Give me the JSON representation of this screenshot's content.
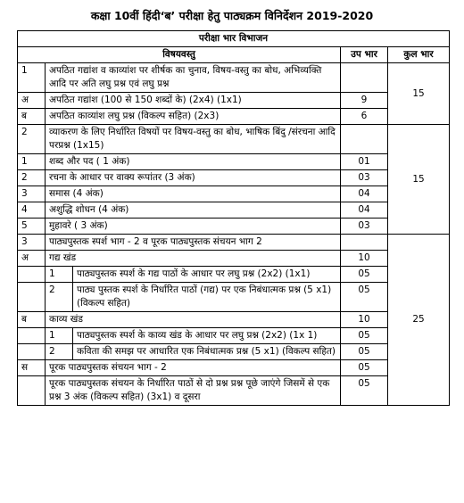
{
  "title": "कक्षा 10वीं हिंदी‘ब’ परीक्षा हेतु पाठ्यक्रम विनिर्देशन 2019-2020",
  "header": {
    "section": "परीक्षा भार विभाजन",
    "topic": "विषयवस्तु",
    "sub_marks": "उप भार",
    "total_marks": "कुल भार"
  },
  "rows": [
    {
      "num": "1",
      "text": "अपठित गद्यांश व काव्यांश पर शीर्षक का चुनाव, विषय-वस्तु का बोध, अभिव्यक्ति आदि पर अति लघु प्रश्न एवं लघु प्रश्न",
      "total": "15",
      "subs": [
        {
          "label": "अ",
          "text": "अपठित गद्यांश (100 से 150 शब्दों के) (2x4) (1x1)",
          "marks": "9"
        },
        {
          "label": "ब",
          "text": "अपठित काव्यांश लघु प्रश्न (विकल्प सहित) (2x3)",
          "marks": "6"
        }
      ]
    },
    {
      "num": "2",
      "text": "व्याकरण के लिए निर्धारित विषयों पर विषय-वस्तु का बोध, भाषिक बिंदु /संरचना आदि परप्रश्न (1x15)",
      "total": "15",
      "subs": [
        {
          "label": "1",
          "text": "शब्द और पद ( 1 अंक)",
          "marks": "01"
        },
        {
          "label": "2",
          "text": "रचना के आधार पर वाक्य रूपांतर (3 अंक)",
          "marks": "03"
        },
        {
          "label": "3",
          "text": "समास (4 अंक)",
          "marks": "04"
        },
        {
          "label": "4",
          "text": "अशुद्धि शोधन (4 अंक)",
          "marks": "04"
        },
        {
          "label": "5",
          "text": "मुहावरे ( 3 अंक)",
          "marks": "03"
        }
      ]
    },
    {
      "num": "3",
      "text": "पाठ्यपुस्तक स्पर्श भाग - 2 व पूरक पाठ्यपुस्तक संचयन भाग 2",
      "total": "25",
      "groups": [
        {
          "label": "अ",
          "text": "गद्य खंड",
          "marks": "10",
          "items": [
            {
              "label": "1",
              "text": "पाठ्यपुस्तक स्पर्श के गद्य पाठों के आधार पर लघु प्रश्न (2x2) (1x1)",
              "marks": "05"
            },
            {
              "label": "2",
              "text": "पाठ्य पुस्तक स्पर्श के निर्धारित पाठों (गद्य) पर एक निबंधात्मक प्रश्न (5 x1) (विकल्प सहित)",
              "marks": "05"
            }
          ]
        },
        {
          "label": "ब",
          "text": "काव्य खंड",
          "marks": "10",
          "items": [
            {
              "label": "1",
              "text": "पाठ्यपुस्तक स्पर्श के काव्य खंड के आधार पर लघु प्रश्न (2x2) (1x 1)",
              "marks": "05"
            },
            {
              "label": "2",
              "text": "कविता की समझ पर आधारित एक निबंधात्मक प्रश्न (5 x1) (विकल्प सहित)",
              "marks": "05"
            }
          ]
        },
        {
          "label": "स",
          "text": "पूरक पाठ्यपुस्तक संचयन भाग - 2",
          "marks": "05"
        },
        {
          "label": "",
          "text": "पूरक पाठ्यपुस्तक संचयन के निर्धारित पाठों से दो प्रश्न प्रश्न पूछे जाएंगे जिसमें से एक प्रश्न 3 अंक (विकल्प सहित) (3x1) व दूसरा",
          "marks": "05"
        }
      ]
    }
  ]
}
